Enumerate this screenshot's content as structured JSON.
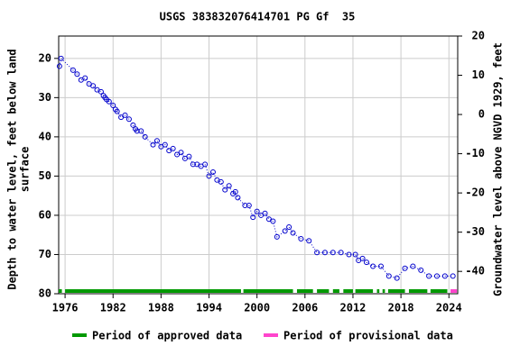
{
  "chart_data": {
    "type": "scatter",
    "title": "USGS 383832076414701 PG Gf  35",
    "y_label": [
      "Depth to water level, feet below land",
      "surface"
    ],
    "y2_label": "Groundwater level above NGVD 1929, feet",
    "xlim": [
      1975.2,
      2025.1
    ],
    "xticks": [
      1976,
      1982,
      1988,
      1994,
      2000,
      2006,
      2012,
      2018,
      2024
    ],
    "ylim": [
      14.3,
      80
    ],
    "y_inverted": true,
    "yticks": [
      20,
      30,
      40,
      50,
      60,
      70,
      80
    ],
    "y2lim": [
      -45.7,
      20
    ],
    "y2ticks": [
      20,
      10,
      0,
      -10,
      -20,
      -30,
      -40
    ],
    "grid": true,
    "series": [
      {
        "name": "Depth to water level",
        "color": "#0000cc",
        "x": [
          1975.3,
          1975.5,
          1977,
          1977.5,
          1978,
          1978.5,
          1979,
          1979.5,
          1980,
          1980.5,
          1980.8,
          1981,
          1981.2,
          1981.5,
          1982,
          1982.3,
          1982.5,
          1983,
          1983.5,
          1984,
          1984.5,
          1984.8,
          1985,
          1985.5,
          1986,
          1987,
          1987.5,
          1988,
          1988.5,
          1989,
          1989.5,
          1990,
          1990.5,
          1991,
          1991.5,
          1992,
          1992.5,
          1993,
          1993.5,
          1994,
          1994.5,
          1995,
          1995.5,
          1996,
          1996.5,
          1997,
          1997.3,
          1997.6,
          1998.5,
          1999,
          1999.5,
          2000,
          2000.5,
          2001,
          2001.5,
          2002,
          2002.5,
          2003.5,
          2004,
          2004.5,
          2005.5,
          2006.5,
          2007.5,
          2008.5,
          2009.5,
          2010.5,
          2011.5,
          2012.3,
          2012.7,
          2013.2,
          2013.7,
          2014.5,
          2015.5,
          2016.5,
          2017.5,
          2018.5,
          2019.5,
          2020.5,
          2021.5,
          2022.5,
          2023.5,
          2024.5
        ],
        "values": [
          22,
          20,
          23,
          24,
          25.5,
          25,
          26.5,
          27,
          28,
          28.5,
          29.5,
          30,
          30.5,
          31,
          32,
          33,
          33.5,
          35,
          34.5,
          35.5,
          37,
          38,
          38.5,
          38.5,
          40,
          42,
          41,
          42.5,
          42,
          43.5,
          43,
          44.5,
          44,
          45.5,
          45,
          47,
          47,
          47.5,
          47,
          50,
          49,
          51,
          51.5,
          53.5,
          52.5,
          54.5,
          54,
          55.5,
          57.5,
          57.5,
          60.5,
          59,
          60,
          59.5,
          61,
          61.5,
          65.5,
          64,
          63,
          64.5,
          66,
          66.5,
          69.5,
          69.5,
          69.5,
          69.5,
          70,
          70,
          71.5,
          71,
          72,
          73,
          73,
          75.5,
          76,
          73.5,
          73,
          74,
          75.5,
          75.5,
          75.5,
          75.5
        ]
      }
    ],
    "periods": [
      {
        "name": "Period of approved data",
        "color": "#009900",
        "ranges": [
          [
            1975.2,
            1975.6
          ],
          [
            1976,
            1998
          ],
          [
            1998.3,
            2004.5
          ],
          [
            2005,
            2007
          ],
          [
            2007.5,
            2009
          ],
          [
            2009.5,
            2010.3
          ],
          [
            2010.8,
            2012
          ],
          [
            2012.3,
            2014.5
          ],
          [
            2015,
            2015.3
          ],
          [
            2015.7,
            2016
          ],
          [
            2016.4,
            2018.5
          ],
          [
            2019,
            2021.3
          ],
          [
            2021.7,
            2023.8
          ]
        ]
      },
      {
        "name": "Period of provisional data",
        "color": "#ff44cc",
        "ranges": [
          [
            2024.2,
            2025
          ]
        ]
      }
    ]
  }
}
